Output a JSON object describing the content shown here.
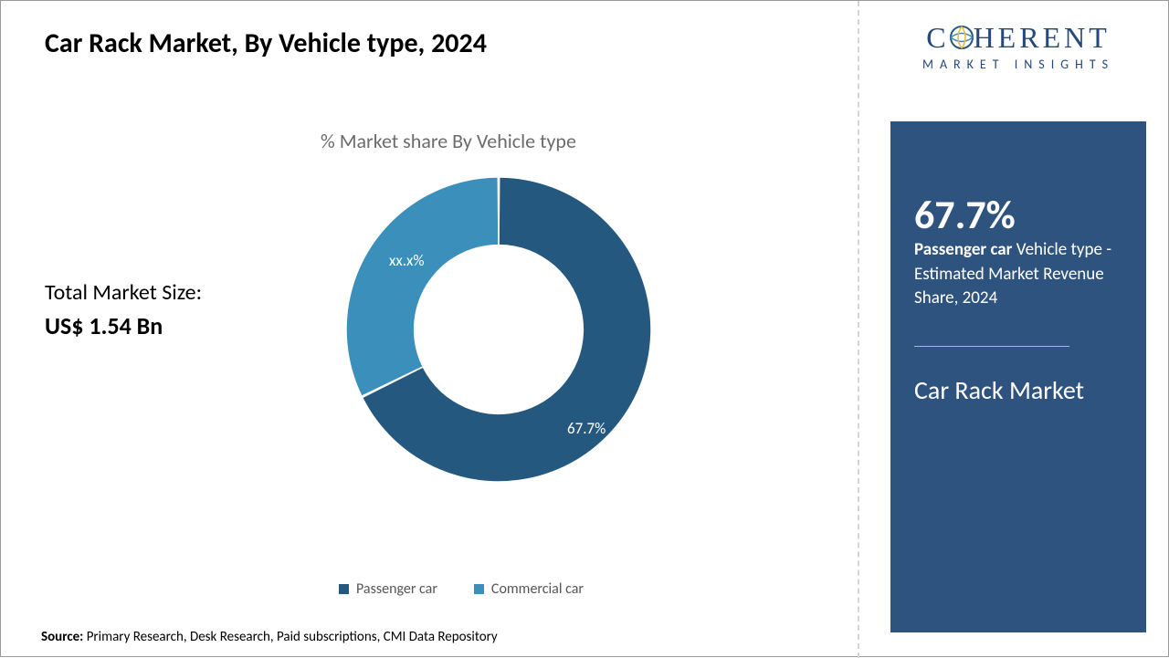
{
  "title": "Car Rack Market, By Vehicle type, 2024",
  "subtitle": "% Market share By Vehicle type",
  "market_size": {
    "label": "Total Market Size:",
    "value": "US$ 1.54 Bn"
  },
  "chart": {
    "type": "donut",
    "inner_radius_pct": 56,
    "background_color": "#ffffff",
    "slices": [
      {
        "name": "Passenger car",
        "value": 67.7,
        "label": "67.7%",
        "color": "#25587f"
      },
      {
        "name": "Commercial car",
        "value": 32.3,
        "label": "xx.x%",
        "color": "#3a8fbb"
      }
    ],
    "gap_color": "#ffffff",
    "slice_gap_deg": 1.0
  },
  "legend": [
    {
      "label": "Passenger car",
      "color": "#25587f"
    },
    {
      "label": "Commercial car",
      "color": "#3a8fbb"
    }
  ],
  "source": {
    "prefix": "Source: ",
    "text": "Primary Research, Desk Research, Paid subscriptions, CMI Data Repository"
  },
  "logo": {
    "line1_pre": "C",
    "line1_post": "HERENT",
    "line2": "MARKET INSIGHTS",
    "text_color": "#26487a",
    "accent_colors": [
      "#e9b93e",
      "#3a8fbb",
      "#25587f"
    ]
  },
  "panel": {
    "bg_color": "#2f537f",
    "stat_pct": "67.7%",
    "stat_bold": "Passenger car",
    "stat_rest": " Vehicle type - Estimated Market Revenue Share, 2024",
    "market_name": "Car Rack Market"
  }
}
